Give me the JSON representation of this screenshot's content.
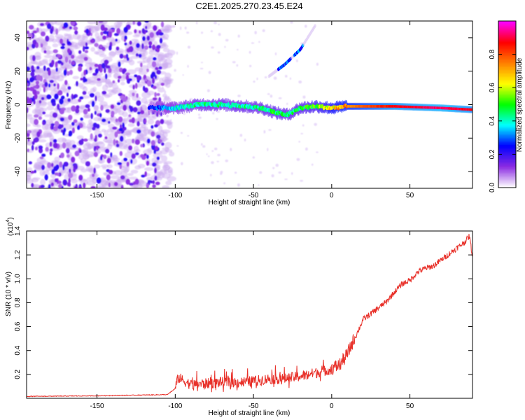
{
  "title": "C2E1.2025.270.23.45.E24",
  "chart_data": [
    {
      "type": "heatmap",
      "title": "C2E1.2025.270.23.45.E24",
      "xlabel": "Height of straight line (km)",
      "ylabel": "Frequency (Hz)",
      "xlim": [
        -195,
        90
      ],
      "ylim": [
        -50,
        50
      ],
      "xticks": [
        -150,
        -100,
        -50,
        0,
        50
      ],
      "yticks": [
        -40,
        -20,
        0,
        20,
        40
      ],
      "colorbar": {
        "label": "Normalized spectral amplitude",
        "range": [
          0,
          1
        ],
        "ticks": [
          "0.0",
          "0.2",
          "0.4",
          "0.6",
          "0.8"
        ],
        "colors": [
          "#ffffff",
          "#8a2be2",
          "#0000ff",
          "#00ffff",
          "#00ff00",
          "#ffff00",
          "#ff8000",
          "#ff0000",
          "#ff00ff"
        ]
      },
      "features": {
        "noise_region_x": [
          -195,
          -108
        ],
        "main_track": {
          "x": [
            -117,
            -100,
            -85,
            -70,
            -55,
            -45,
            -35,
            -28,
            -20,
            -10,
            0,
            10,
            40,
            70,
            90
          ],
          "freq": [
            -2,
            -2,
            0,
            0,
            -1,
            -2,
            -5,
            -6,
            -2,
            -1,
            -2,
            -1,
            -1,
            -2,
            -3
          ],
          "amplitude": [
            0.25,
            0.4,
            0.45,
            0.45,
            0.45,
            0.45,
            0.5,
            0.45,
            0.5,
            0.55,
            0.7,
            0.75,
            0.9,
            0.95,
            0.9
          ]
        },
        "branch_track": {
          "x": [
            -40,
            -30,
            -20,
            -10
          ],
          "freq": [
            17,
            24,
            33,
            48
          ]
        }
      }
    },
    {
      "type": "line",
      "xlabel": "Height of straight line (km)",
      "ylabel": "SNR (10 * v/v)",
      "scale_label": "(x10",
      "scale_exponent": "4",
      "xlim": [
        -195,
        90
      ],
      "ylim": [
        0,
        1.4
      ],
      "xticks": [
        -150,
        -100,
        -50,
        0,
        50
      ],
      "yticks": [
        "0.2",
        "0.4",
        "0.6",
        "0.8",
        "1.0",
        "1.2",
        "1.4"
      ],
      "series": [
        {
          "name": "SNR",
          "color": "#e8312a",
          "x": [
            -195,
            -150,
            -105,
            -100,
            -98,
            -90,
            -80,
            -70,
            -60,
            -50,
            -40,
            -30,
            -20,
            -10,
            0,
            5,
            10,
            15,
            20,
            25,
            30,
            35,
            40,
            45,
            50,
            55,
            60,
            65,
            70,
            75,
            80,
            85,
            88,
            90
          ],
          "y": [
            0.015,
            0.02,
            0.03,
            0.08,
            0.16,
            0.1,
            0.11,
            0.12,
            0.12,
            0.13,
            0.15,
            0.15,
            0.17,
            0.2,
            0.23,
            0.26,
            0.35,
            0.5,
            0.65,
            0.7,
            0.75,
            0.8,
            0.88,
            0.95,
            0.98,
            1.05,
            1.08,
            1.1,
            1.15,
            1.2,
            1.25,
            1.3,
            1.35,
            1.18
          ]
        }
      ]
    }
  ]
}
